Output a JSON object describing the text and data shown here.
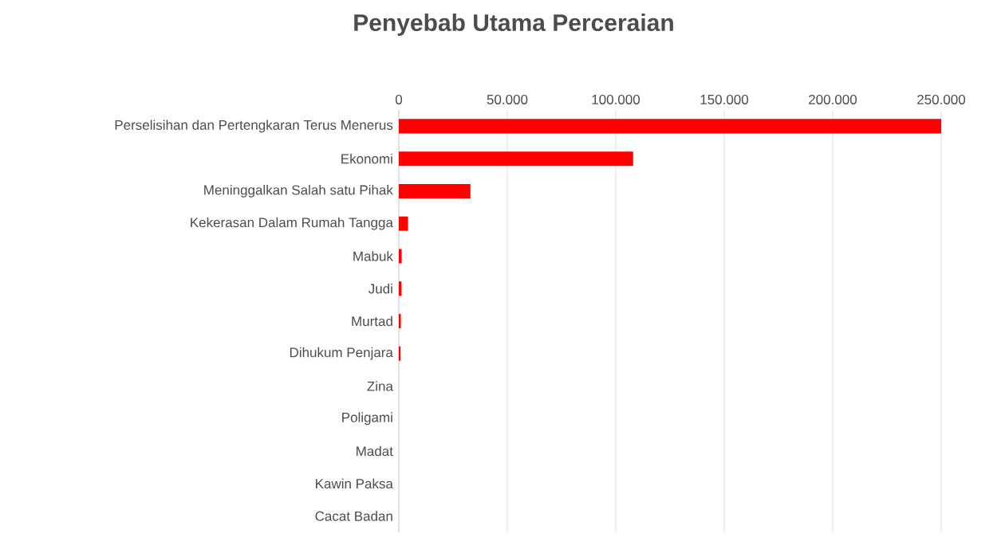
{
  "chart_data": {
    "type": "bar",
    "orientation": "horizontal",
    "title": "Penyebab Utama Perceraian",
    "categories": [
      "Perselisihan dan Pertengkaran Terus Menerus",
      "Ekonomi",
      "Meninggalkan Salah satu Pihak",
      "Kekerasan Dalam Rumah Tangga",
      "Mabuk",
      "Judi",
      "Murtad",
      "Dihukum Penjara",
      "Zina",
      "Poligami",
      "Madat",
      "Kawin Paksa",
      "Cacat Badan"
    ],
    "values": [
      250000,
      108000,
      33000,
      4200,
      1300,
      1200,
      900,
      800,
      null,
      null,
      null,
      null,
      null
    ],
    "color": "#ff0000",
    "xlim": [
      0,
      250000
    ],
    "xticks": [
      {
        "value": 0,
        "label": "0"
      },
      {
        "value": 50000,
        "label": "50.000"
      },
      {
        "value": 100000,
        "label": "100.000"
      },
      {
        "value": 150000,
        "label": "150.000"
      },
      {
        "value": 200000,
        "label": "200.000"
      },
      {
        "value": 250000,
        "label": "250.000"
      }
    ],
    "grid": "x"
  }
}
